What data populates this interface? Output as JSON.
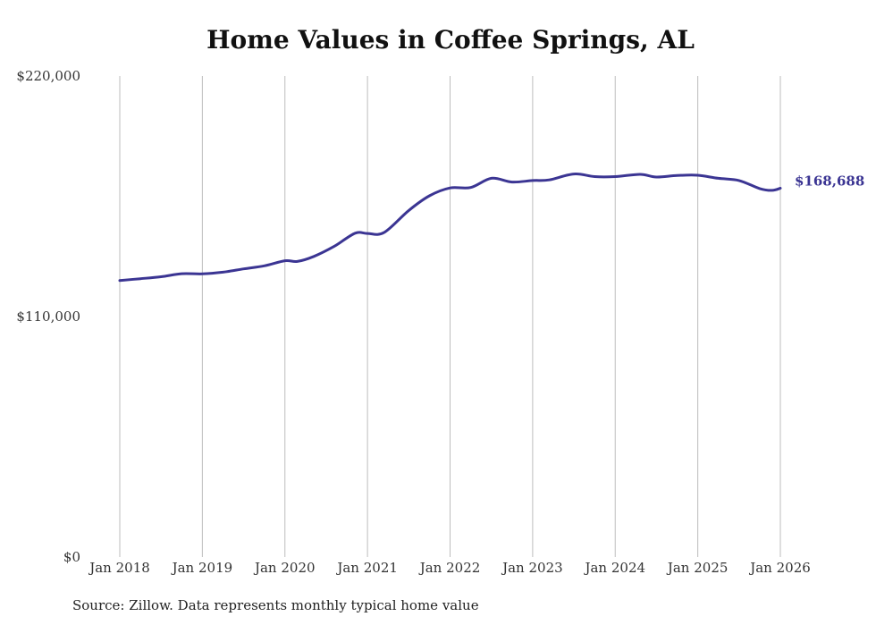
{
  "chart_data": {
    "type": "line",
    "title": "Home Values in Coffee Springs, AL",
    "source": "Source: Zillow. Data represents monthly typical home value",
    "xlabel": "",
    "ylabel": "",
    "ylim": [
      0,
      220000
    ],
    "yticks": [
      {
        "value": 0,
        "label": "$0"
      },
      {
        "value": 110000,
        "label": "$110,000"
      },
      {
        "value": 220000,
        "label": "$220,000"
      }
    ],
    "xticks": [
      {
        "t": 2018,
        "label": "Jan 2018"
      },
      {
        "t": 2019,
        "label": "Jan 2019"
      },
      {
        "t": 2020,
        "label": "Jan 2020"
      },
      {
        "t": 2021,
        "label": "Jan 2021"
      },
      {
        "t": 2022,
        "label": "Jan 2022"
      },
      {
        "t": 2023,
        "label": "Jan 2023"
      },
      {
        "t": 2024,
        "label": "Jan 2024"
      },
      {
        "t": 2025,
        "label": "Jan 2025"
      },
      {
        "t": 2026,
        "label": "Jan 2026"
      }
    ],
    "xlim": [
      2018,
      2026
    ],
    "grid": true,
    "line_color": "#3b3593",
    "end_label": "$168,688",
    "series": [
      {
        "name": "Typical home value",
        "points": [
          [
            2018.0,
            126500
          ],
          [
            2018.25,
            127300
          ],
          [
            2018.5,
            128200
          ],
          [
            2018.75,
            129600
          ],
          [
            2019.0,
            129500
          ],
          [
            2019.25,
            130300
          ],
          [
            2019.5,
            131800
          ],
          [
            2019.75,
            133200
          ],
          [
            2020.0,
            135500
          ],
          [
            2020.15,
            135200
          ],
          [
            2020.35,
            137500
          ],
          [
            2020.6,
            142200
          ],
          [
            2020.85,
            148100
          ],
          [
            2021.0,
            148000
          ],
          [
            2021.2,
            148400
          ],
          [
            2021.5,
            158500
          ],
          [
            2021.75,
            165200
          ],
          [
            2022.0,
            168800
          ],
          [
            2022.25,
            169000
          ],
          [
            2022.5,
            173200
          ],
          [
            2022.75,
            171500
          ],
          [
            2023.0,
            172200
          ],
          [
            2023.2,
            172500
          ],
          [
            2023.5,
            175200
          ],
          [
            2023.75,
            174000
          ],
          [
            2024.0,
            174000
          ],
          [
            2024.3,
            175000
          ],
          [
            2024.5,
            173800
          ],
          [
            2024.75,
            174500
          ],
          [
            2025.0,
            174600
          ],
          [
            2025.25,
            173200
          ],
          [
            2025.5,
            172200
          ],
          [
            2025.75,
            168500
          ],
          [
            2025.9,
            167700
          ],
          [
            2026.0,
            168688
          ]
        ]
      }
    ]
  }
}
